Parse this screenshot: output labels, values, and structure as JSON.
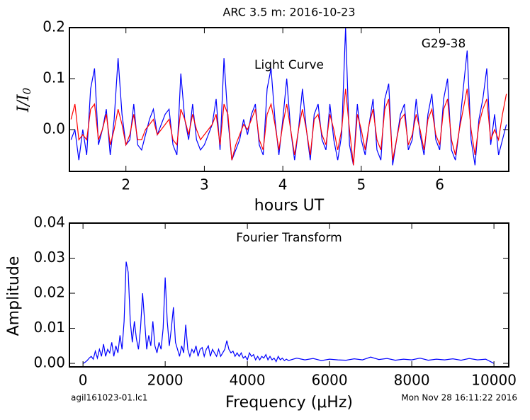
{
  "title": "ARC 3.5 m:  2016-10-23",
  "footer_left": "agil161023-01.lc1",
  "footer_right": "Mon Nov 28 16:11:22 2016",
  "chart_data": [
    {
      "type": "line",
      "annotations": [
        "Light Curve",
        "G29-38"
      ],
      "xlabel": "hours UT",
      "ylabel": "I/I",
      "ylabel_subscript": "0",
      "xlim": [
        1.28,
        6.88
      ],
      "ylim": [
        -0.082,
        0.2
      ],
      "xticks": [
        2,
        3,
        4,
        5,
        6
      ],
      "yticks": [
        {
          "value": 0,
          "label": "0.0"
        },
        0.1,
        0.2
      ],
      "x": [
        1.3,
        1.35,
        1.4,
        1.45,
        1.5,
        1.55,
        1.6,
        1.65,
        1.7,
        1.75,
        1.8,
        1.85,
        1.9,
        1.95,
        2.0,
        2.05,
        2.1,
        2.15,
        2.2,
        2.25,
        2.3,
        2.35,
        2.4,
        2.45,
        2.5,
        2.55,
        2.6,
        2.65,
        2.7,
        2.75,
        2.8,
        2.85,
        2.9,
        2.95,
        3.0,
        3.05,
        3.1,
        3.15,
        3.2,
        3.25,
        3.3,
        3.35,
        3.4,
        3.45,
        3.5,
        3.55,
        3.6,
        3.65,
        3.7,
        3.75,
        3.8,
        3.85,
        3.9,
        3.95,
        4.0,
        4.05,
        4.1,
        4.15,
        4.2,
        4.25,
        4.3,
        4.35,
        4.4,
        4.45,
        4.5,
        4.55,
        4.6,
        4.65,
        4.7,
        4.75,
        4.8,
        4.85,
        4.9,
        4.95,
        5.0,
        5.05,
        5.1,
        5.15,
        5.2,
        5.25,
        5.3,
        5.35,
        5.4,
        5.45,
        5.5,
        5.55,
        5.6,
        5.65,
        5.7,
        5.75,
        5.8,
        5.85,
        5.9,
        5.95,
        6.0,
        6.05,
        6.1,
        6.15,
        6.2,
        6.25,
        6.3,
        6.35,
        6.4,
        6.45,
        6.5,
        6.55,
        6.6,
        6.65,
        6.7,
        6.75,
        6.8,
        6.85
      ],
      "series": [
        {
          "color": "#0000ff",
          "values": [
            -0.02,
            0.0,
            -0.06,
            0.0,
            -0.05,
            0.08,
            0.12,
            -0.03,
            0.0,
            0.04,
            -0.05,
            0.02,
            0.14,
            0.03,
            -0.03,
            -0.02,
            0.05,
            -0.03,
            -0.04,
            -0.01,
            0.02,
            0.04,
            -0.01,
            0.01,
            0.03,
            0.04,
            -0.03,
            -0.05,
            0.11,
            0.02,
            -0.02,
            0.05,
            -0.02,
            -0.04,
            -0.03,
            -0.01,
            0.01,
            0.06,
            -0.04,
            0.14,
            0.02,
            -0.06,
            -0.04,
            -0.02,
            0.02,
            -0.01,
            0.03,
            0.05,
            -0.03,
            -0.05,
            0.08,
            0.12,
            0.02,
            -0.05,
            0.02,
            0.1,
            0.0,
            -0.06,
            0.0,
            0.08,
            0.0,
            -0.06,
            0.03,
            0.05,
            -0.02,
            -0.04,
            0.05,
            -0.02,
            -0.06,
            -0.01,
            0.2,
            -0.03,
            -0.07,
            0.05,
            -0.02,
            -0.05,
            0.01,
            0.06,
            -0.04,
            -0.06,
            0.06,
            0.09,
            -0.07,
            -0.02,
            0.03,
            0.05,
            -0.04,
            -0.02,
            0.06,
            -0.01,
            -0.05,
            0.03,
            0.07,
            -0.02,
            -0.04,
            0.06,
            0.1,
            -0.04,
            -0.06,
            0.0,
            0.08,
            0.155,
            -0.02,
            -0.07,
            0.02,
            0.06,
            0.12,
            -0.03,
            0.03,
            -0.05,
            -0.02,
            0.01
          ]
        },
        {
          "color": "#ff0000",
          "values": [
            0.02,
            0.05,
            -0.02,
            -0.01,
            -0.02,
            0.04,
            0.05,
            -0.02,
            0.0,
            0.03,
            -0.03,
            0.0,
            0.04,
            0.01,
            -0.03,
            -0.01,
            0.03,
            -0.02,
            -0.02,
            0.0,
            0.01,
            0.02,
            -0.01,
            0.0,
            0.01,
            0.02,
            -0.02,
            -0.03,
            0.04,
            0.02,
            -0.01,
            0.03,
            0.0,
            -0.02,
            -0.01,
            0.0,
            0.01,
            0.03,
            -0.03,
            0.05,
            0.03,
            -0.06,
            -0.03,
            -0.01,
            0.01,
            0.0,
            0.02,
            0.04,
            -0.02,
            -0.04,
            0.03,
            0.05,
            0.01,
            -0.04,
            0.01,
            0.05,
            0.0,
            -0.05,
            0.0,
            0.04,
            0.0,
            -0.05,
            0.02,
            0.03,
            -0.01,
            -0.03,
            0.03,
            0.0,
            -0.04,
            0.0,
            0.08,
            0.0,
            -0.07,
            0.03,
            0.0,
            -0.04,
            0.01,
            0.04,
            -0.02,
            -0.04,
            0.04,
            0.06,
            -0.06,
            -0.02,
            0.02,
            0.03,
            -0.03,
            -0.01,
            0.03,
            0.0,
            -0.04,
            0.02,
            0.04,
            -0.01,
            -0.03,
            0.04,
            0.06,
            -0.02,
            -0.05,
            0.0,
            0.04,
            0.08,
            0.0,
            -0.05,
            0.01,
            0.04,
            0.06,
            -0.02,
            0.0,
            -0.02,
            0.03,
            0.07
          ]
        }
      ]
    },
    {
      "type": "line",
      "annotations": [
        "Fourier Transform"
      ],
      "xlabel": "Frequency (μHz)",
      "ylabel": "Amplitude",
      "xlim": [
        -330,
        10360
      ],
      "ylim": [
        -0.001,
        0.04
      ],
      "xticks": [
        0,
        2000,
        4000,
        6000,
        8000,
        10000
      ],
      "yticks": [
        {
          "value": 0,
          "label": "0.00"
        },
        {
          "value": 0.01,
          "label": "0.01"
        },
        {
          "value": 0.02,
          "label": "0.02"
        },
        {
          "value": 0.03,
          "label": "0.03"
        },
        {
          "value": 0.04,
          "label": "0.04"
        }
      ],
      "x": [
        0,
        50,
        100,
        150,
        200,
        250,
        300,
        350,
        400,
        450,
        500,
        550,
        600,
        650,
        700,
        750,
        800,
        850,
        900,
        950,
        1000,
        1050,
        1100,
        1150,
        1200,
        1250,
        1300,
        1350,
        1400,
        1450,
        1500,
        1550,
        1600,
        1650,
        1700,
        1750,
        1800,
        1850,
        1900,
        1950,
        2000,
        2050,
        2100,
        2150,
        2200,
        2250,
        2300,
        2350,
        2400,
        2450,
        2500,
        2550,
        2600,
        2650,
        2700,
        2750,
        2800,
        2850,
        2900,
        2950,
        3000,
        3050,
        3100,
        3150,
        3200,
        3250,
        3300,
        3350,
        3400,
        3450,
        3500,
        3550,
        3600,
        3650,
        3700,
        3750,
        3800,
        3850,
        3900,
        3950,
        4000,
        4050,
        4100,
        4150,
        4200,
        4250,
        4300,
        4350,
        4400,
        4450,
        4500,
        4550,
        4600,
        4650,
        4700,
        4750,
        4800,
        4850,
        4900,
        4950,
        5000,
        5200,
        5400,
        5600,
        5800,
        6000,
        6200,
        6400,
        6600,
        6800,
        7000,
        7200,
        7400,
        7600,
        7800,
        8000,
        8200,
        8400,
        8600,
        8800,
        9000,
        9200,
        9400,
        9600,
        9800,
        10000
      ],
      "series": [
        {
          "color": "#0000ff",
          "values": [
            0,
            0.0003,
            0.0008,
            0.0015,
            0.002,
            0.0012,
            0.0035,
            0.0015,
            0.004,
            0.002,
            0.0055,
            0.002,
            0.004,
            0.003,
            0.006,
            0.002,
            0.005,
            0.003,
            0.008,
            0.004,
            0.012,
            0.029,
            0.026,
            0.012,
            0.006,
            0.012,
            0.007,
            0.004,
            0.01,
            0.02,
            0.012,
            0.004,
            0.008,
            0.005,
            0.012,
            0.005,
            0.003,
            0.006,
            0.004,
            0.01,
            0.0245,
            0.012,
            0.005,
            0.01,
            0.016,
            0.006,
            0.004,
            0.002,
            0.005,
            0.003,
            0.011,
            0.004,
            0.002,
            0.004,
            0.003,
            0.005,
            0.002,
            0.004,
            0.0045,
            0.002,
            0.004,
            0.005,
            0.002,
            0.004,
            0.003,
            0.002,
            0.004,
            0.002,
            0.003,
            0.004,
            0.0065,
            0.004,
            0.003,
            0.0035,
            0.002,
            0.003,
            0.002,
            0.003,
            0.0015,
            0.002,
            0.001,
            0.003,
            0.002,
            0.0025,
            0.001,
            0.002,
            0.001,
            0.002,
            0.0015,
            0.0025,
            0.001,
            0.002,
            0.001,
            0.0015,
            0.0005,
            0.002,
            0.001,
            0.0015,
            0.0008,
            0.0012,
            0.0008,
            0.0015,
            0.001,
            0.0014,
            0.0008,
            0.0012,
            0.001,
            0.0009,
            0.0013,
            0.001,
            0.0018,
            0.0011,
            0.0014,
            0.0009,
            0.0012,
            0.001,
            0.0015,
            0.0009,
            0.0012,
            0.001,
            0.0013,
            0.0009,
            0.0014,
            0.001,
            0.0012,
            0
          ]
        }
      ]
    }
  ]
}
